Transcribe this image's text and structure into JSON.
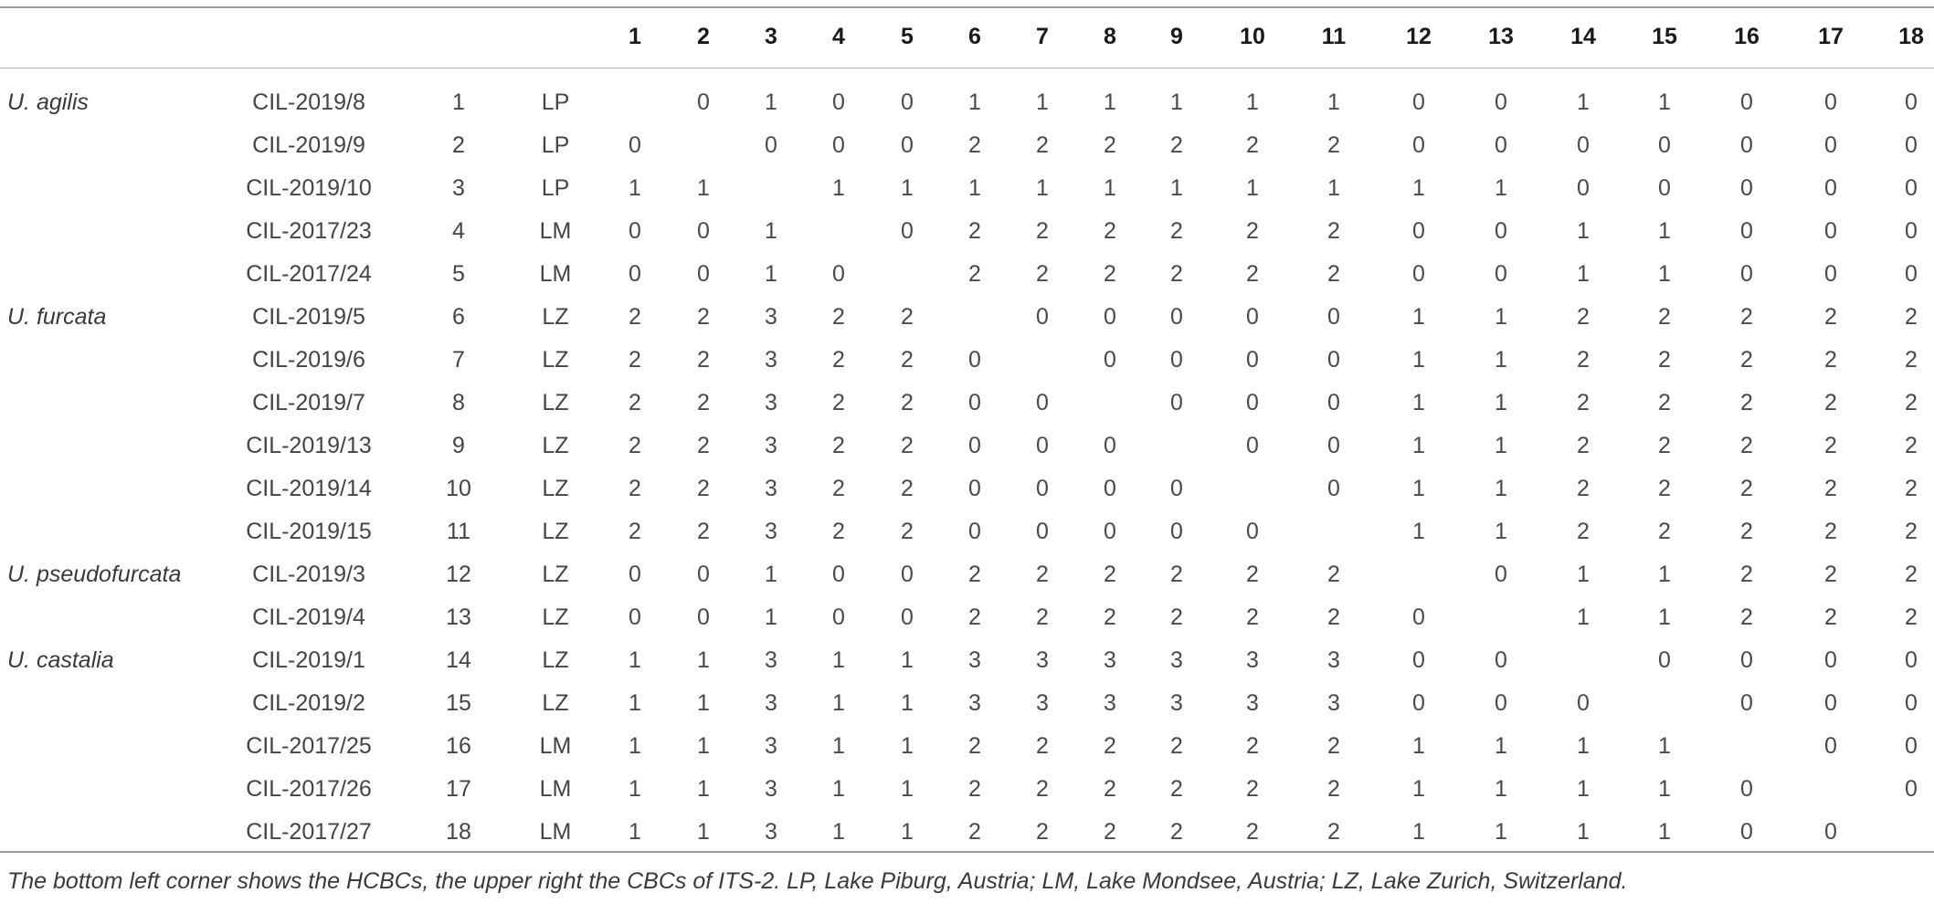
{
  "header": {
    "columns": [
      "1",
      "2",
      "3",
      "4",
      "5",
      "6",
      "7",
      "8",
      "9",
      "10",
      "11",
      "12",
      "13",
      "14",
      "15",
      "16",
      "17",
      "18"
    ]
  },
  "rows": [
    {
      "species": "U. agilis",
      "strain": "CIL-2019/8",
      "index": "1",
      "lake": "LP",
      "values": [
        "",
        "0",
        "1",
        "0",
        "0",
        "1",
        "1",
        "1",
        "1",
        "1",
        "1",
        "0",
        "0",
        "1",
        "1",
        "0",
        "0",
        "0"
      ]
    },
    {
      "species": "",
      "strain": "CIL-2019/9",
      "index": "2",
      "lake": "LP",
      "values": [
        "0",
        "",
        "0",
        "0",
        "0",
        "2",
        "2",
        "2",
        "2",
        "2",
        "2",
        "0",
        "0",
        "0",
        "0",
        "0",
        "0",
        "0"
      ]
    },
    {
      "species": "",
      "strain": "CIL-2019/10",
      "index": "3",
      "lake": "LP",
      "values": [
        "1",
        "1",
        "",
        "1",
        "1",
        "1",
        "1",
        "1",
        "1",
        "1",
        "1",
        "1",
        "1",
        "0",
        "0",
        "0",
        "0",
        "0"
      ]
    },
    {
      "species": "",
      "strain": "CIL-2017/23",
      "index": "4",
      "lake": "LM",
      "values": [
        "0",
        "0",
        "1",
        "",
        "0",
        "2",
        "2",
        "2",
        "2",
        "2",
        "2",
        "0",
        "0",
        "1",
        "1",
        "0",
        "0",
        "0"
      ]
    },
    {
      "species": "",
      "strain": "CIL-2017/24",
      "index": "5",
      "lake": "LM",
      "values": [
        "0",
        "0",
        "1",
        "0",
        "",
        "2",
        "2",
        "2",
        "2",
        "2",
        "2",
        "0",
        "0",
        "1",
        "1",
        "0",
        "0",
        "0"
      ]
    },
    {
      "species": "U. furcata",
      "strain": "CIL-2019/5",
      "index": "6",
      "lake": "LZ",
      "values": [
        "2",
        "2",
        "3",
        "2",
        "2",
        "",
        "0",
        "0",
        "0",
        "0",
        "0",
        "1",
        "1",
        "2",
        "2",
        "2",
        "2",
        "2"
      ]
    },
    {
      "species": "",
      "strain": "CIL-2019/6",
      "index": "7",
      "lake": "LZ",
      "values": [
        "2",
        "2",
        "3",
        "2",
        "2",
        "0",
        "",
        "0",
        "0",
        "0",
        "0",
        "1",
        "1",
        "2",
        "2",
        "2",
        "2",
        "2"
      ]
    },
    {
      "species": "",
      "strain": "CIL-2019/7",
      "index": "8",
      "lake": "LZ",
      "values": [
        "2",
        "2",
        "3",
        "2",
        "2",
        "0",
        "0",
        "",
        "0",
        "0",
        "0",
        "1",
        "1",
        "2",
        "2",
        "2",
        "2",
        "2"
      ]
    },
    {
      "species": "",
      "strain": "CIL-2019/13",
      "index": "9",
      "lake": "LZ",
      "values": [
        "2",
        "2",
        "3",
        "2",
        "2",
        "0",
        "0",
        "0",
        "",
        "0",
        "0",
        "1",
        "1",
        "2",
        "2",
        "2",
        "2",
        "2"
      ]
    },
    {
      "species": "",
      "strain": "CIL-2019/14",
      "index": "10",
      "lake": "LZ",
      "values": [
        "2",
        "2",
        "3",
        "2",
        "2",
        "0",
        "0",
        "0",
        "0",
        "",
        "0",
        "1",
        "1",
        "2",
        "2",
        "2",
        "2",
        "2"
      ]
    },
    {
      "species": "",
      "strain": "CIL-2019/15",
      "index": "11",
      "lake": "LZ",
      "values": [
        "2",
        "2",
        "3",
        "2",
        "2",
        "0",
        "0",
        "0",
        "0",
        "0",
        "",
        "1",
        "1",
        "2",
        "2",
        "2",
        "2",
        "2"
      ]
    },
    {
      "species": "U. pseudofurcata",
      "strain": "CIL-2019/3",
      "index": "12",
      "lake": "LZ",
      "values": [
        "0",
        "0",
        "1",
        "0",
        "0",
        "2",
        "2",
        "2",
        "2",
        "2",
        "2",
        "",
        "0",
        "1",
        "1",
        "2",
        "2",
        "2"
      ]
    },
    {
      "species": "",
      "strain": "CIL-2019/4",
      "index": "13",
      "lake": "LZ",
      "values": [
        "0",
        "0",
        "1",
        "0",
        "0",
        "2",
        "2",
        "2",
        "2",
        "2",
        "2",
        "0",
        "",
        "1",
        "1",
        "2",
        "2",
        "2"
      ]
    },
    {
      "species": "U. castalia",
      "strain": "CIL-2019/1",
      "index": "14",
      "lake": "LZ",
      "values": [
        "1",
        "1",
        "3",
        "1",
        "1",
        "3",
        "3",
        "3",
        "3",
        "3",
        "3",
        "0",
        "0",
        "",
        "0",
        "0",
        "0",
        "0"
      ]
    },
    {
      "species": "",
      "strain": "CIL-2019/2",
      "index": "15",
      "lake": "LZ",
      "values": [
        "1",
        "1",
        "3",
        "1",
        "1",
        "3",
        "3",
        "3",
        "3",
        "3",
        "3",
        "0",
        "0",
        "0",
        "",
        "0",
        "0",
        "0"
      ]
    },
    {
      "species": "",
      "strain": "CIL-2017/25",
      "index": "16",
      "lake": "LM",
      "values": [
        "1",
        "1",
        "3",
        "1",
        "1",
        "2",
        "2",
        "2",
        "2",
        "2",
        "2",
        "1",
        "1",
        "1",
        "1",
        "",
        "0",
        "0"
      ]
    },
    {
      "species": "",
      "strain": "CIL-2017/26",
      "index": "17",
      "lake": "LM",
      "values": [
        "1",
        "1",
        "3",
        "1",
        "1",
        "2",
        "2",
        "2",
        "2",
        "2",
        "2",
        "1",
        "1",
        "1",
        "1",
        "0",
        "",
        "0"
      ]
    },
    {
      "species": "",
      "strain": "CIL-2017/27",
      "index": "18",
      "lake": "LM",
      "values": [
        "1",
        "1",
        "3",
        "1",
        "1",
        "2",
        "2",
        "2",
        "2",
        "2",
        "2",
        "1",
        "1",
        "1",
        "1",
        "0",
        "0",
        ""
      ]
    }
  ],
  "caption": "The bottom left corner shows the HCBCs, the upper right the CBCs of ITS-2. LP, Lake Piburg, Austria; LM, Lake Mondsee, Austria; LZ, Lake Zurich, Switzerland."
}
